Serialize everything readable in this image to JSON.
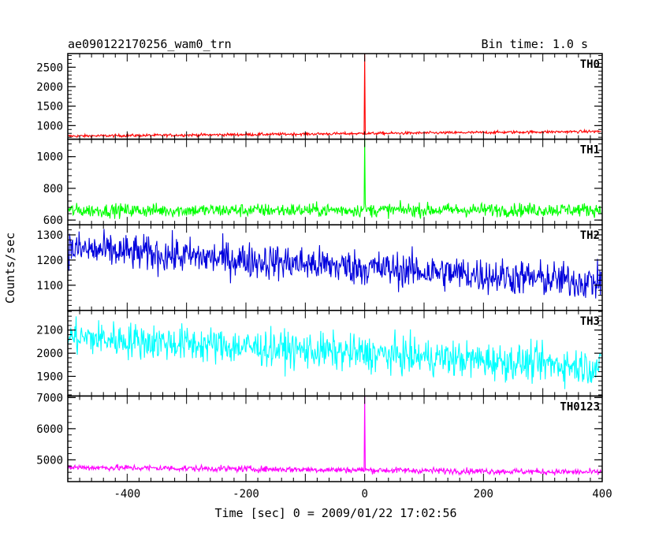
{
  "figure": {
    "title_left": "ae090122170256_wam0_trn",
    "title_right": "Bin time: 1.0 s",
    "xlabel": "Time [sec] 0 = 2009/01/22 17:02:56",
    "ylabel": "Counts/sec"
  },
  "chart_data": {
    "type": "line",
    "x_range": [
      -500,
      400
    ],
    "x_ticks": [
      -400,
      -200,
      0,
      200,
      400
    ],
    "bin_time_s": 1.0,
    "trigger_time_s": 0,
    "panels": [
      {
        "name": "TH0",
        "color": "#ff0000",
        "ylim": [
          650,
          2850
        ],
        "y_ticks": [
          1000,
          1500,
          2000,
          2500
        ],
        "baseline_start": 730,
        "baseline_end": 850,
        "noise": 25,
        "spike_peak": 2850
      },
      {
        "name": "TH1",
        "color": "#00ff00",
        "ylim": [
          570,
          1110
        ],
        "y_ticks": [
          600,
          800,
          1000
        ],
        "baseline_start": 660,
        "baseline_end": 665,
        "noise": 30,
        "spike_peak": 1110
      },
      {
        "name": "TH2",
        "color": "#0000dd",
        "ylim": [
          1000,
          1340
        ],
        "y_ticks": [
          1100,
          1200,
          1300
        ],
        "baseline_start": 1245,
        "baseline_end": 1110,
        "noise": 50,
        "spike_peak": null
      },
      {
        "name": "TH3",
        "color": "#00ffff",
        "ylim": [
          1815,
          2185
        ],
        "y_ticks": [
          1900,
          2000,
          2100
        ],
        "baseline_start": 2070,
        "baseline_end": 1940,
        "noise": 55,
        "spike_peak": null
      },
      {
        "name": "TH0123",
        "color": "#ff00ff",
        "ylim": [
          4300,
          7050
        ],
        "y_ticks": [
          5000,
          6000,
          7000
        ],
        "baseline_start": 4760,
        "baseline_end": 4600,
        "noise": 70,
        "spike_peak": 7050
      }
    ]
  }
}
